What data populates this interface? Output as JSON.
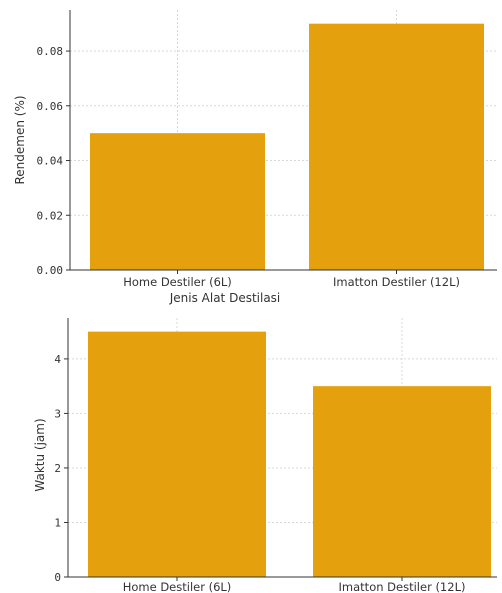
{
  "colors": {
    "bar": "#E5A00D"
  },
  "chart_data": [
    {
      "type": "bar",
      "title": "",
      "categories": [
        "Home Destiler (6L)",
        "Imatton Destiler (12L)"
      ],
      "values": [
        0.05,
        0.09
      ],
      "xlabel": "Jenis Alat Destilasi",
      "ylabel": "Rendemen (%)",
      "ylim": [
        0,
        0.095
      ],
      "yticks": [
        0.0,
        0.02,
        0.04,
        0.06,
        0.08
      ],
      "ytick_labels": [
        "0.00",
        "0.02",
        "0.04",
        "0.06",
        "0.08"
      ],
      "grid": true
    },
    {
      "type": "bar",
      "title": "",
      "categories": [
        "Home Destiler (6L)",
        "Imatton Destiler (12L)"
      ],
      "values": [
        4.5,
        3.5
      ],
      "xlabel": "",
      "ylabel": "Waktu (jam)",
      "ylim": [
        0,
        4.75
      ],
      "yticks": [
        0,
        1,
        2,
        3,
        4
      ],
      "ytick_labels": [
        "0",
        "1",
        "2",
        "3",
        "4"
      ],
      "grid": true
    }
  ]
}
